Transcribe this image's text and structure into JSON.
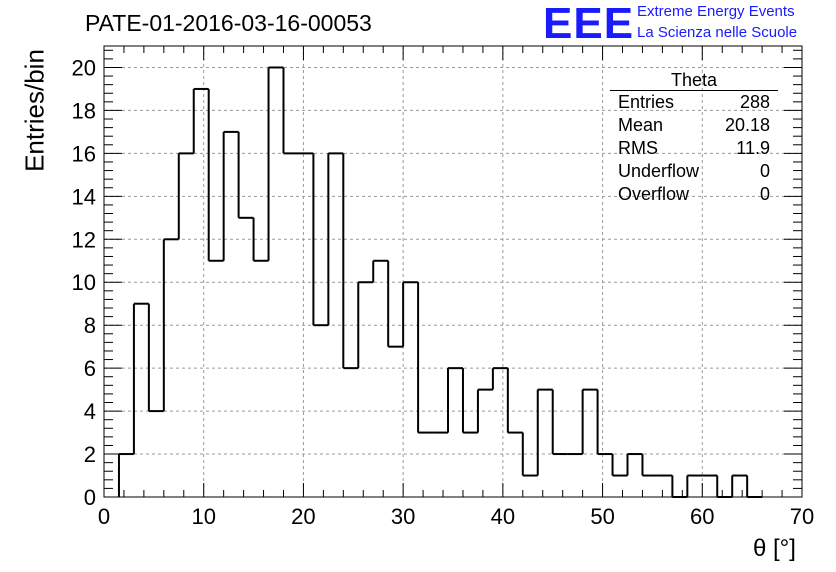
{
  "header": {
    "title": "PATE-01-2016-03-16-00053",
    "logo_text": "EEE",
    "logo_line1": "Extreme Energy Events",
    "logo_line2": "La Scienza nelle Scuole",
    "logo_color": "#1a1aff"
  },
  "stats_box": {
    "title": "Theta",
    "rows": [
      {
        "label": "Entries",
        "value": "288"
      },
      {
        "label": "Mean",
        "value": "20.18"
      },
      {
        "label": "RMS",
        "value": "11.9"
      },
      {
        "label": "Underflow",
        "value": "0"
      },
      {
        "label": "Overflow",
        "value": "0"
      }
    ]
  },
  "chart_data": {
    "type": "bar",
    "histogram": true,
    "xlabel": "θ [°]",
    "ylabel": "Entries/bin",
    "xlim": [
      0,
      70
    ],
    "ylim": [
      0,
      21
    ],
    "grid": true,
    "bin_width": 1.5,
    "bin_start": 1.5,
    "values": [
      2,
      9,
      4,
      12,
      16,
      19,
      11,
      17,
      13,
      11,
      20,
      16,
      16,
      8,
      16,
      6,
      10,
      11,
      7,
      10,
      3,
      3,
      6,
      3,
      5,
      6,
      3,
      1,
      5,
      2,
      2,
      5,
      2,
      1,
      2,
      1,
      1,
      0,
      1,
      1,
      0,
      1,
      0
    ],
    "xticks": [
      0,
      10,
      20,
      30,
      40,
      50,
      60,
      70
    ],
    "yticks": [
      0,
      2,
      4,
      6,
      8,
      10,
      12,
      14,
      16,
      18,
      20
    ],
    "line_color": "#000000"
  }
}
